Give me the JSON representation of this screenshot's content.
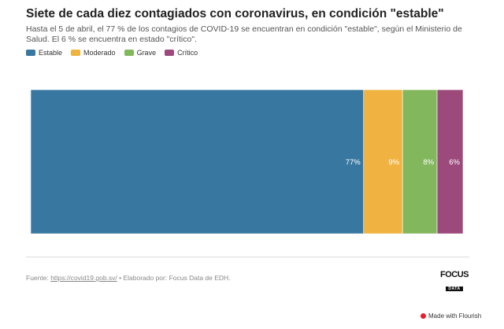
{
  "header": {
    "title": "Siete de cada diez contagiados con coronavirus, en condición \"estable\"",
    "subtitle": "Hasta el 5 de abril, el 77 % de los contagios de COVID-19 se encuentran en condición \"estable\", según el Ministerio de Salud. El 6 % se encuentra en estado \"crítico\"."
  },
  "chart_data": {
    "type": "bar",
    "orientation": "horizontal-stacked",
    "title": "Siete de cada diez contagiados con coronavirus, en condición \"estable\"",
    "xlabel": "",
    "ylabel": "",
    "xlim": [
      0,
      100
    ],
    "series": [
      {
        "name": "Estable",
        "values": [
          77
        ],
        "label": "77%",
        "color": "#3878a0"
      },
      {
        "name": "Moderado",
        "values": [
          9
        ],
        "label": "9%",
        "color": "#f0b341"
      },
      {
        "name": "Grave",
        "values": [
          8
        ],
        "label": "8%",
        "color": "#83b75d"
      },
      {
        "name": "Crítico",
        "values": [
          6
        ],
        "label": "6%",
        "color": "#9c4a7b"
      }
    ]
  },
  "footer": {
    "source_prefix": "Fuente: ",
    "source_link": "https://covid19.gob.sv/",
    "source_suffix": " • Elaborado por: Focus Data de EDH.",
    "logo_main": "FOCUS",
    "logo_sub": "DATA",
    "flourish": "Made with Flourish"
  }
}
